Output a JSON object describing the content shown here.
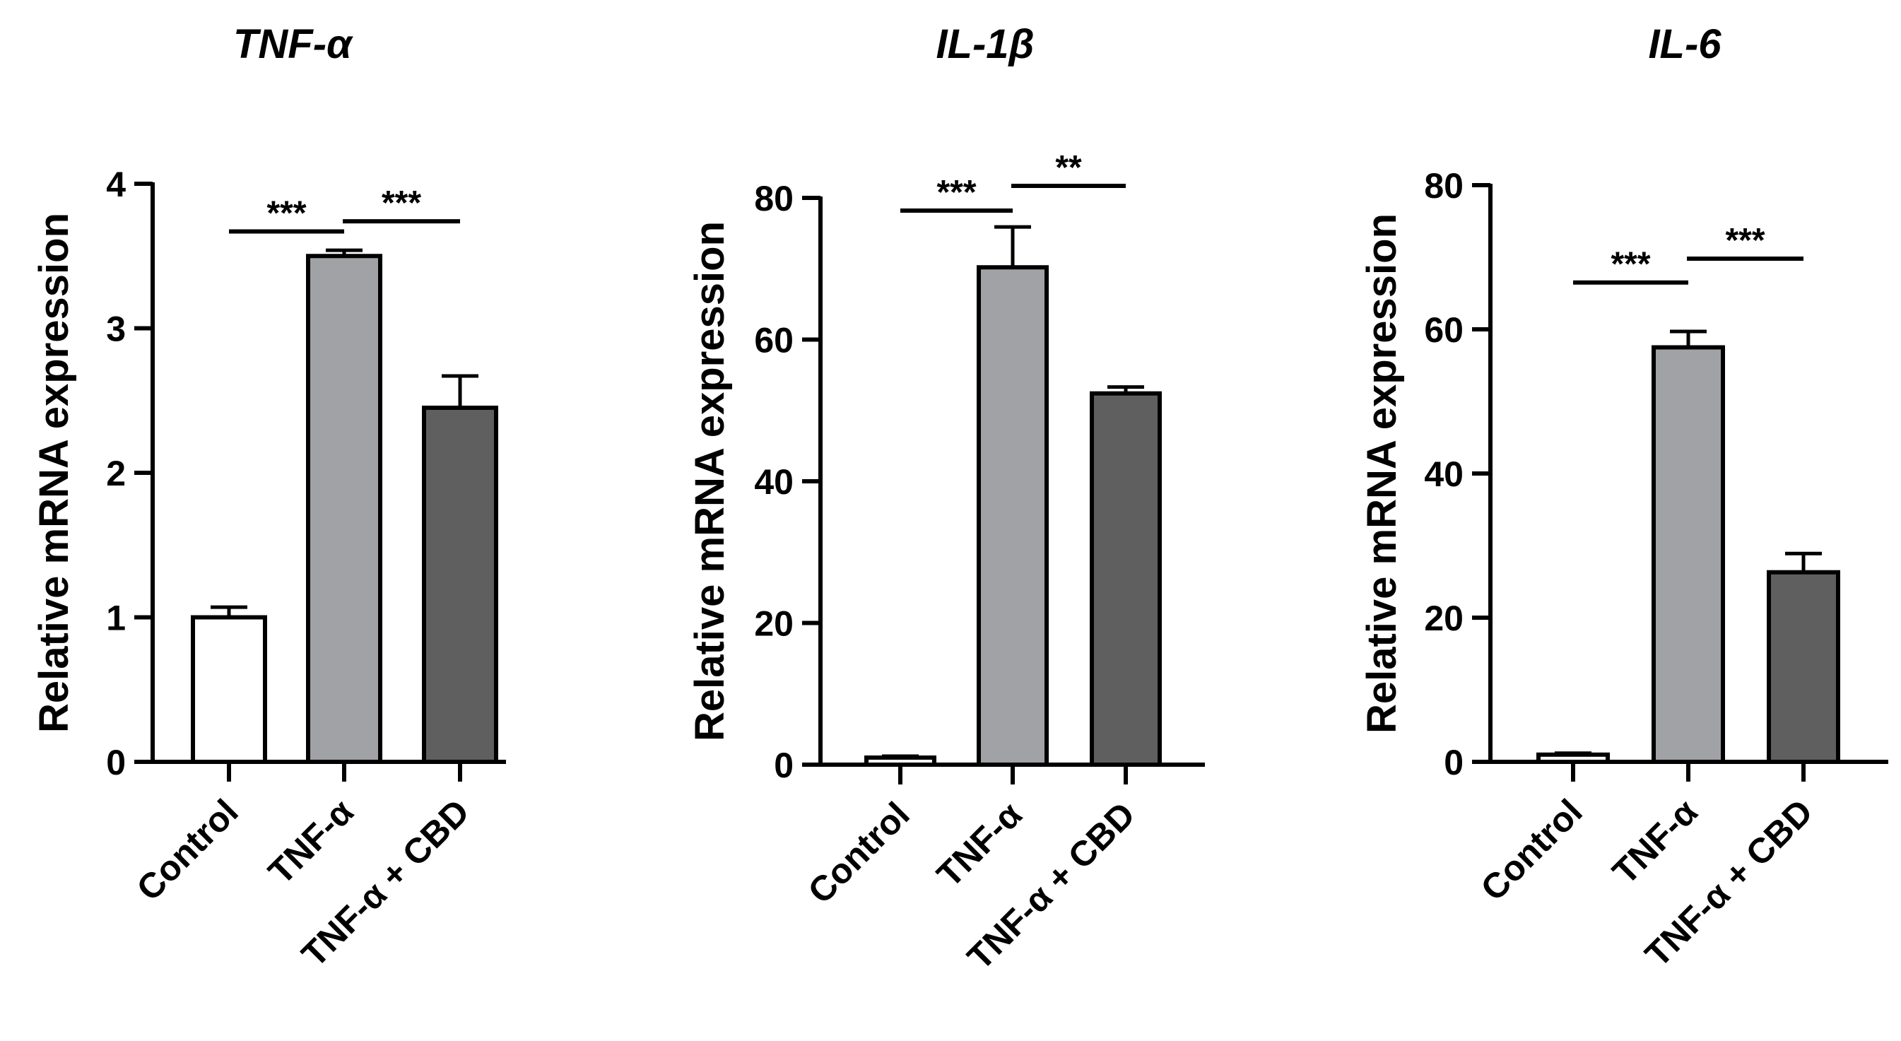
{
  "chart_data": [
    {
      "type": "bar",
      "title": "TNF-α",
      "ylabel": "Relative mRNA expression",
      "xlabel": "",
      "categories": [
        "Control",
        "TNF-α",
        "TNF-α + CBD"
      ],
      "values": [
        1.0,
        3.5,
        2.45
      ],
      "errors": [
        0.07,
        0.04,
        0.22
      ],
      "colors": [
        "#ffffff",
        "#a1a2a6",
        "#5f5f5f"
      ],
      "ylim": [
        0,
        4
      ],
      "yticks": [
        0,
        1,
        2,
        3,
        4
      ],
      "ytick_labels": [
        "0",
        "1",
        "2",
        "3",
        "4"
      ],
      "significance": [
        {
          "from": 0,
          "to": 1,
          "label": "***",
          "y": 3.67
        },
        {
          "from": 1,
          "to": 2,
          "label": "***",
          "y": 3.74
        }
      ]
    },
    {
      "type": "bar",
      "title": "IL-1β",
      "ylabel": "Relative mRNA expression",
      "xlabel": "",
      "categories": [
        "Control",
        "TNF-α",
        "TNF-α + CBD"
      ],
      "values": [
        1.0,
        70.2,
        52.4
      ],
      "errors": [
        0.2,
        5.7,
        0.9
      ],
      "colors": [
        "#ffffff",
        "#a1a2a6",
        "#5f5f5f"
      ],
      "ylim": [
        0,
        80
      ],
      "yticks": [
        0,
        20,
        40,
        60,
        80
      ],
      "ytick_labels": [
        "0",
        "20",
        "40",
        "60",
        "80"
      ],
      "significance": [
        {
          "from": 0,
          "to": 1,
          "label": "***",
          "y": 78.2
        },
        {
          "from": 1,
          "to": 2,
          "label": "**",
          "y": 81.7
        }
      ]
    },
    {
      "type": "bar",
      "title": "IL-6",
      "ylabel": "Relative mRNA expression",
      "xlabel": "",
      "categories": [
        "Control",
        "TNF-α",
        "TNF-α + CBD"
      ],
      "values": [
        1.0,
        57.5,
        26.3
      ],
      "errors": [
        0.2,
        2.2,
        2.6
      ],
      "colors": [
        "#ffffff",
        "#a1a2a6",
        "#5f5f5f"
      ],
      "ylim": [
        0,
        80
      ],
      "yticks": [
        0,
        20,
        40,
        60,
        80
      ],
      "ytick_labels": [
        "0",
        "20",
        "40",
        "60",
        "80"
      ],
      "significance": [
        {
          "from": 0,
          "to": 1,
          "label": "***",
          "y": 66.5
        },
        {
          "from": 1,
          "to": 2,
          "label": "***",
          "y": 69.8
        }
      ]
    }
  ]
}
